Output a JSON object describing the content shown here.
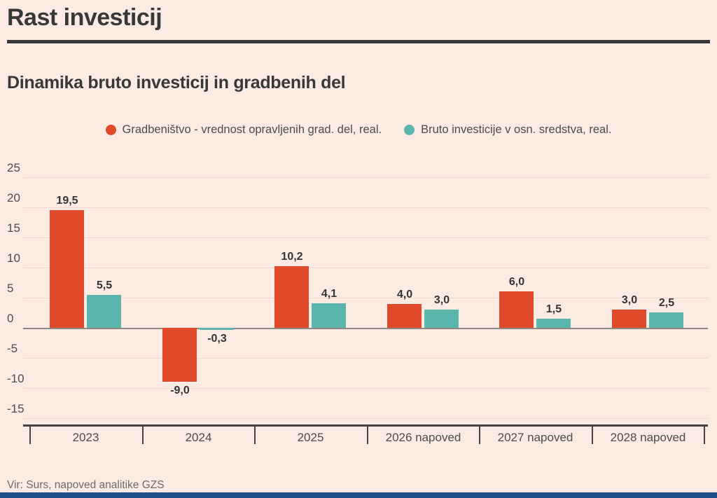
{
  "page": {
    "title": "Rast investicij",
    "subtitle": "Dinamika bruto investicij in gradbenih del",
    "source": "Vir: Surs, napoved analitike GZS"
  },
  "colors": {
    "background": "#fcebe2",
    "series1": "#e04a2b",
    "series2": "#5ab6ad",
    "grid": "#f0d8cf",
    "zero_line": "#8d8781",
    "axis": "#474340",
    "text_dark": "#383838",
    "text_axis": "#4c4c4c",
    "text_value": "#343434",
    "text_source": "#6e6a66",
    "footer_bar": "#1e4e8b"
  },
  "chart_data": {
    "type": "bar",
    "title": "Dinamika bruto investicij in gradbenih del",
    "categories": [
      "2023",
      "2024",
      "2025",
      "2026 napoved",
      "2027 napoved",
      "2028 napoved"
    ],
    "series": [
      {
        "name": "Gradbeništvo - vrednost opravljenih grad. del, real.",
        "color_key": "series1",
        "values": [
          19.5,
          -9.0,
          10.2,
          4.0,
          6.0,
          3.0
        ],
        "labels": [
          "19,5",
          "-9,0",
          "10,2",
          "4,0",
          "6,0",
          "3,0"
        ]
      },
      {
        "name": "Bruto investicije v osn. sredstva, real.",
        "color_key": "series2",
        "values": [
          5.5,
          -0.3,
          4.1,
          3.0,
          1.5,
          2.5
        ],
        "labels": [
          "5,5",
          "-0,3",
          "4,1",
          "3,0",
          "1,5",
          "2,5"
        ]
      }
    ],
    "yticks": [
      25,
      20,
      15,
      10,
      5,
      0,
      -5,
      -10,
      -15
    ],
    "ylim": [
      -16,
      25
    ],
    "grid": true,
    "legend_position": "top",
    "decimal_separator": ",",
    "xlabel": "",
    "ylabel": ""
  }
}
